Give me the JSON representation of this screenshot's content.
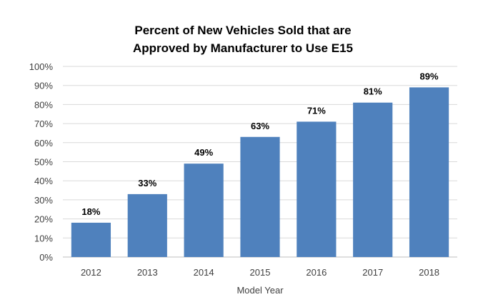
{
  "chart_data": {
    "type": "bar",
    "title": [
      "Percent of New Vehicles Sold that are",
      "Approved by Manufacturer to Use E15"
    ],
    "xlabel": "Model Year",
    "ylabel": "",
    "categories": [
      "2012",
      "2013",
      "2014",
      "2015",
      "2016",
      "2017",
      "2018"
    ],
    "values": [
      18,
      33,
      49,
      63,
      71,
      81,
      89
    ],
    "data_labels": [
      "18%",
      "33%",
      "49%",
      "63%",
      "71%",
      "81%",
      "89%"
    ],
    "ylim": [
      0,
      100
    ],
    "yticks": [
      "0%",
      "10%",
      "20%",
      "30%",
      "40%",
      "50%",
      "60%",
      "70%",
      "80%",
      "90%",
      "100%"
    ],
    "grid": true,
    "legend": "none",
    "bar_color": "#4f81bd",
    "grid_color": "#d9d9d9"
  }
}
